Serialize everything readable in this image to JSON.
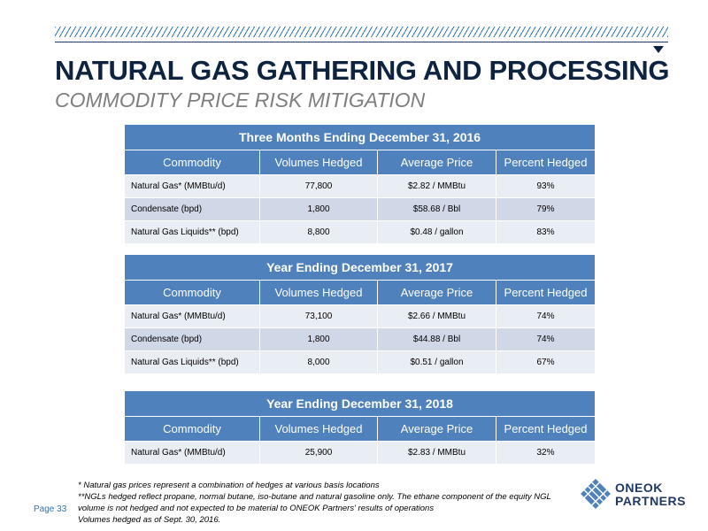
{
  "header": {
    "title": "NATURAL GAS GATHERING AND PROCESSING",
    "subtitle": "COMMODITY PRICE RISK MITIGATION"
  },
  "columns": [
    "Commodity",
    "Volumes Hedged",
    "Average Price",
    "Percent Hedged"
  ],
  "tables": [
    {
      "period": "Three Months Ending December 31, 2016",
      "rows": [
        [
          "Natural Gas* (MMBtu/d)",
          "77,800",
          "$2.82 / MMBtu",
          "93%"
        ],
        [
          "Condensate (bpd)",
          "1,800",
          "$58.68 / Bbl",
          "79%"
        ],
        [
          "Natural Gas Liquids** (bpd)",
          "8,800",
          "$0.48 / gallon",
          "83%"
        ]
      ]
    },
    {
      "period": "Year Ending December 31, 2017",
      "rows": [
        [
          "Natural Gas* (MMBtu/d)",
          "73,100",
          "$2.66 / MMBtu",
          "74%"
        ],
        [
          "Condensate (bpd)",
          "1,800",
          "$44.88 / Bbl",
          "74%"
        ],
        [
          "Natural Gas Liquids** (bpd)",
          "8,000",
          "$0.51 / gallon",
          "67%"
        ]
      ]
    },
    {
      "period": "Year Ending December 31, 2018",
      "rows": [
        [
          "Natural Gas* (MMBtu/d)",
          "25,900",
          "$2.83 / MMBtu",
          "32%"
        ]
      ]
    }
  ],
  "footnotes": [
    "* Natural gas prices represent a combination  of hedges at various basis locations",
    "**NGLs hedged reflect propane, normal butane, iso-butane and natural gasoline only. The ethane component of the equity NGL",
    "volume is not hedged and not expected to be material to ONEOK Partners' results of operations",
    "Volumes hedged as of Sept. 30, 2016."
  ],
  "footer": {
    "page_label": "Page 33",
    "logo_line1": "ONEOK",
    "logo_line2": "PARTNERS",
    "logo_icon": "oneok-diamond-logo-icon"
  },
  "colors": {
    "header_blue": "#4f81bd",
    "row_light": "#e9edf4",
    "row_dark": "#d0d8e8",
    "title_navy": "#0d2340"
  }
}
